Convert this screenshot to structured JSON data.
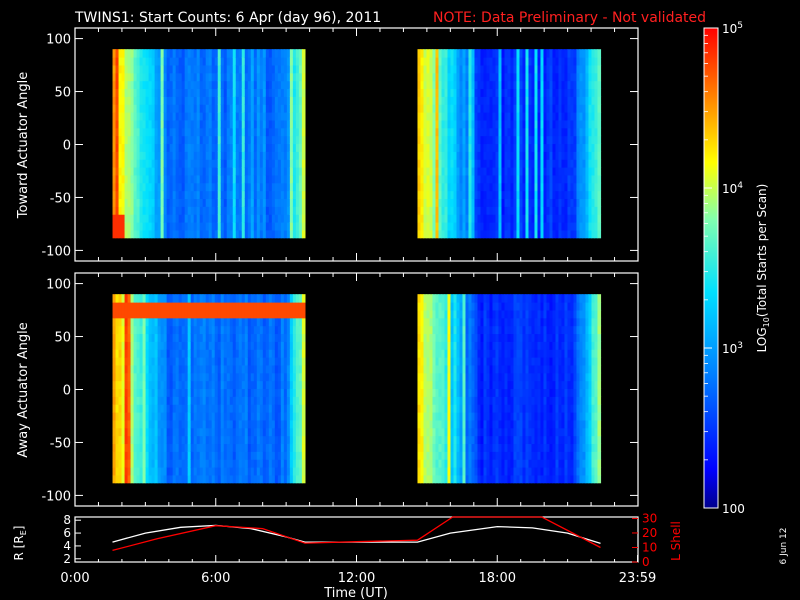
{
  "title": "TWINS1: Start Counts:  6 Apr (day  96), 2011",
  "note": "NOTE: Data Preliminary - Not validated",
  "side_date": "6 Jun 12",
  "chart_data": [
    {
      "type": "heatmap",
      "name": "toward",
      "ylabel": "Toward Actuator Angle",
      "yticks": [
        "100",
        "50",
        "0",
        "-50",
        "-100"
      ],
      "ytick_values": [
        100,
        50,
        0,
        -50,
        -100
      ],
      "ylim": [
        -110,
        110
      ],
      "xlim_hours": [
        0,
        24
      ],
      "data_intervals_hours": [
        [
          1.6,
          9.8
        ],
        [
          14.6,
          22.4
        ]
      ],
      "angle_range": [
        -88,
        90
      ]
    },
    {
      "type": "heatmap",
      "name": "away",
      "ylabel": "Away Actuator Angle",
      "yticks": [
        "100",
        "50",
        "0",
        "-50",
        "-100"
      ],
      "ytick_values": [
        100,
        50,
        0,
        -50,
        -100
      ],
      "ylim": [
        -110,
        110
      ],
      "xlim_hours": [
        0,
        24
      ],
      "data_intervals_hours": [
        [
          1.6,
          9.8
        ],
        [
          14.6,
          22.4
        ]
      ],
      "angle_range": [
        -88,
        90
      ]
    },
    {
      "type": "line",
      "name": "orbit",
      "xlabel": "Time (UT)",
      "xticks": [
        "0:00",
        "6:00",
        "12:00",
        "18:00",
        "23:59"
      ],
      "xtick_values": [
        0,
        6,
        12,
        18,
        23.98
      ],
      "left_axis": {
        "label": "R [R",
        "label_sub": "E",
        "label_end": "]",
        "ticks": [
          "8",
          "6",
          "4",
          "2"
        ],
        "tick_values": [
          8,
          6,
          4,
          2
        ],
        "ylim": [
          1.5,
          8.5
        ]
      },
      "right_axis": {
        "label": "L Shell",
        "ticks": [
          "30",
          "20",
          "10",
          "0"
        ],
        "tick_values": [
          30,
          20,
          10,
          0
        ],
        "ylim": [
          0,
          31
        ],
        "color": "#ff0000"
      },
      "series": [
        {
          "axis": "left",
          "color": "#ffffff",
          "x": [
            1.6,
            3,
            4.5,
            6,
            7.5,
            9,
            9.8,
            12,
            14.6,
            16,
            18,
            19.5,
            21,
            22.4
          ],
          "y": [
            4.6,
            6.0,
            6.9,
            7.2,
            6.7,
            5.4,
            4.6,
            4.6,
            4.6,
            6.0,
            7.0,
            6.8,
            6.0,
            4.4
          ]
        },
        {
          "axis": "right",
          "color": "#ff0000",
          "x": [
            1.6,
            3.5,
            6,
            8,
            9.8,
            12,
            14.6,
            16.1,
            19.9,
            22.4
          ],
          "y": [
            8,
            16,
            25,
            23,
            13,
            14,
            15,
            31,
            31,
            10
          ]
        }
      ]
    },
    {
      "type": "colorbar",
      "name": "colorbar",
      "label": "LOG",
      "label_sub": "10",
      "label_end": "(Total Starts per Scan)",
      "ticks": [
        {
          "base": "10",
          "exp": "5",
          "value": 100000
        },
        {
          "base": "10",
          "exp": "4",
          "value": 10000
        },
        {
          "base": "10",
          "exp": "3",
          "value": 1000
        },
        {
          "base": "100",
          "exp": "",
          "value": 100
        }
      ],
      "range": [
        100,
        100000
      ],
      "scale": "log"
    }
  ]
}
